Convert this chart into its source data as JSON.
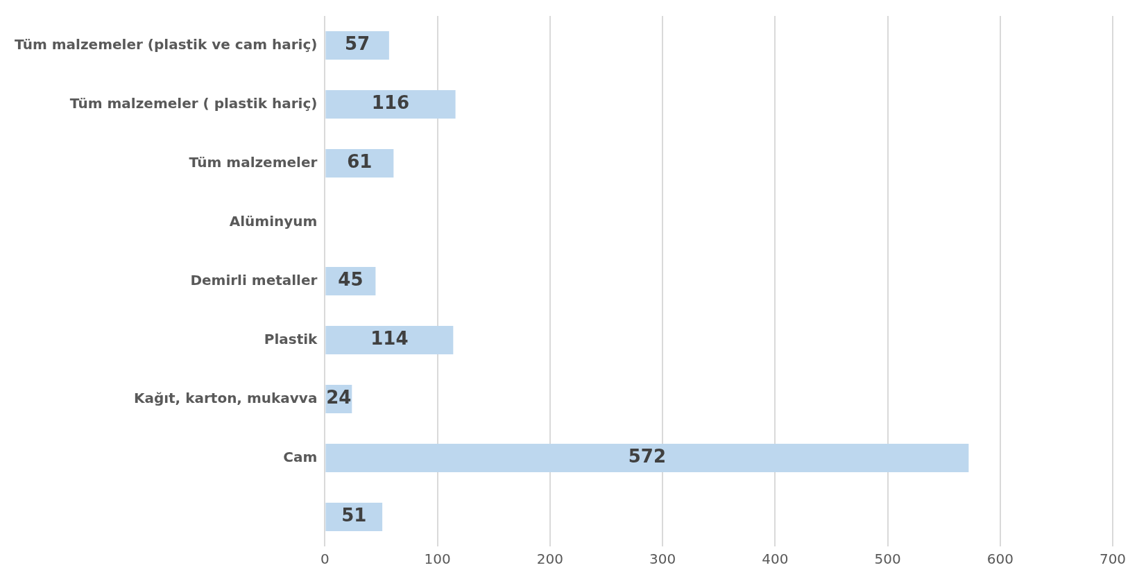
{
  "chart_data": {
    "type": "bar",
    "orientation": "horizontal",
    "categories": [
      "Tüm malzemeler (plastik ve cam hariç)",
      "Tüm malzemeler ( plastik hariç)",
      "Tüm malzemeler",
      "Alüminyum",
      "Demirli metaller",
      "Plastik",
      "Kağıt, karton, mukavva",
      "Cam",
      null
    ],
    "values": [
      57,
      116,
      61,
      null,
      45,
      114,
      24,
      572,
      51
    ],
    "color": "#bdd7ee",
    "xlim": [
      0,
      700
    ],
    "xticks": [
      0,
      100,
      200,
      300,
      400,
      500,
      600,
      700
    ],
    "grid": "x",
    "data_labels": true,
    "legend": false
  }
}
